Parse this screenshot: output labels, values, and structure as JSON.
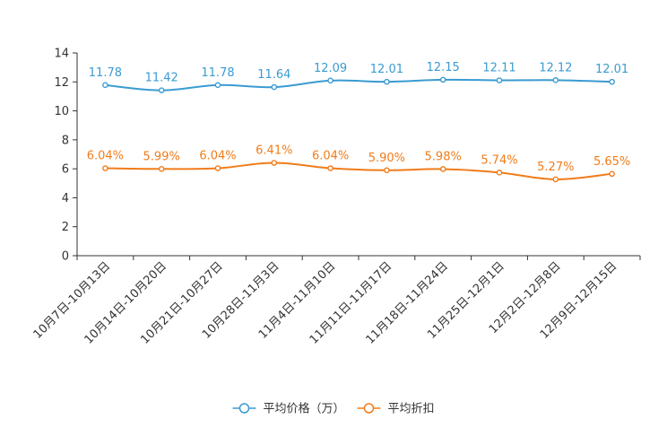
{
  "chart_data": {
    "type": "line",
    "title": "",
    "xlabel": "",
    "ylabel": "",
    "ylim": [
      0,
      14
    ],
    "yticks": [
      0,
      2,
      4,
      6,
      8,
      10,
      12,
      14
    ],
    "grid": false,
    "legend_position": "bottom",
    "categories": [
      "10月7日-10月13日",
      "10月14日-10月20日",
      "10月21日-10月27日",
      "10月28日-11月3日",
      "11月4日-11月10日",
      "11月11日-11月17日",
      "11月18日-11月24日",
      "11月25日-12月1日",
      "12月2日-12月8日",
      "12月9日-12月15日"
    ],
    "series": [
      {
        "name": "平均价格（万）",
        "color": "#3a9bd1",
        "values": [
          11.78,
          11.42,
          11.78,
          11.64,
          12.09,
          12.01,
          12.15,
          12.11,
          12.12,
          12.01
        ],
        "labels": [
          "11.78",
          "11.42",
          "11.78",
          "11.64",
          "12.09",
          "12.01",
          "12.15",
          "12.11",
          "12.12",
          "12.01"
        ]
      },
      {
        "name": "平均折扣",
        "color": "#f07c1b",
        "values": [
          6.04,
          5.99,
          6.04,
          6.41,
          6.04,
          5.9,
          5.98,
          5.74,
          5.27,
          5.65
        ],
        "labels": [
          "6.04%",
          "5.99%",
          "6.04%",
          "6.41%",
          "6.04%",
          "5.90%",
          "5.98%",
          "5.74%",
          "5.27%",
          "5.65%"
        ]
      }
    ]
  }
}
